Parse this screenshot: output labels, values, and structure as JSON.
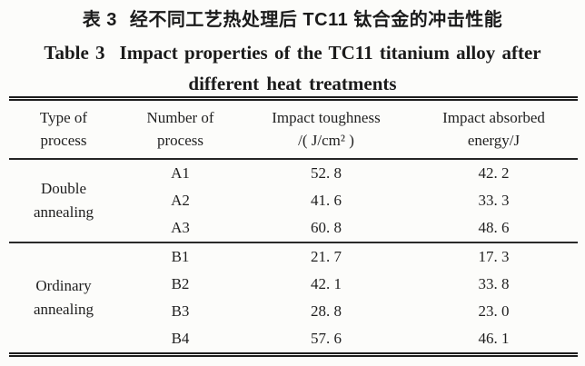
{
  "colors": {
    "background": "#fcfcfa",
    "ink": "#1b1b1b",
    "rule": "#1d1d1d"
  },
  "title": {
    "chinese_label": "表 3",
    "chinese_text": "经不同工艺热处理后 TC11 钛合金的冲击性能",
    "english_label": "Table 3",
    "english_text": "Impact properties of the TC11 titanium alloy after",
    "english_line2": "different heat treatments"
  },
  "table": {
    "columns": [
      {
        "line1": "Type of",
        "line2": "process"
      },
      {
        "line1": "Number of",
        "line2": "process"
      },
      {
        "line1": "Impact toughness",
        "line2": "/( J/cm² )"
      },
      {
        "line1": "Impact absorbed",
        "line2": "energy/J"
      }
    ],
    "groups": [
      {
        "type_line1": "Double",
        "type_line2": "annealing",
        "rows": [
          {
            "number": "A1",
            "toughness": "52. 8",
            "energy": "42. 2"
          },
          {
            "number": "A2",
            "toughness": "41. 6",
            "energy": "33. 3"
          },
          {
            "number": "A3",
            "toughness": "60. 8",
            "energy": "48. 6"
          }
        ]
      },
      {
        "type_line1": "Ordinary",
        "type_line2": "annealing",
        "rows": [
          {
            "number": "B1",
            "toughness": "21. 7",
            "energy": "17. 3"
          },
          {
            "number": "B2",
            "toughness": "42. 1",
            "energy": "33. 8"
          },
          {
            "number": "B3",
            "toughness": "28. 8",
            "energy": "23. 0"
          },
          {
            "number": "B4",
            "toughness": "57. 6",
            "energy": "46. 1"
          }
        ]
      }
    ]
  },
  "chart_data": {
    "type": "table",
    "title": "Table 3 Impact properties of the TC11 titanium alloy after different heat treatments",
    "columns": [
      "Type of process",
      "Number of process",
      "Impact toughness /(J/cm²)",
      "Impact absorbed energy/J"
    ],
    "rows": [
      [
        "Double annealing",
        "A1",
        52.8,
        42.2
      ],
      [
        "Double annealing",
        "A2",
        41.6,
        33.3
      ],
      [
        "Double annealing",
        "A3",
        60.8,
        48.6
      ],
      [
        "Ordinary annealing",
        "B1",
        21.7,
        17.3
      ],
      [
        "Ordinary annealing",
        "B2",
        42.1,
        33.8
      ],
      [
        "Ordinary annealing",
        "B3",
        28.8,
        23.0
      ],
      [
        "Ordinary annealing",
        "B4",
        57.6,
        46.1
      ]
    ]
  }
}
